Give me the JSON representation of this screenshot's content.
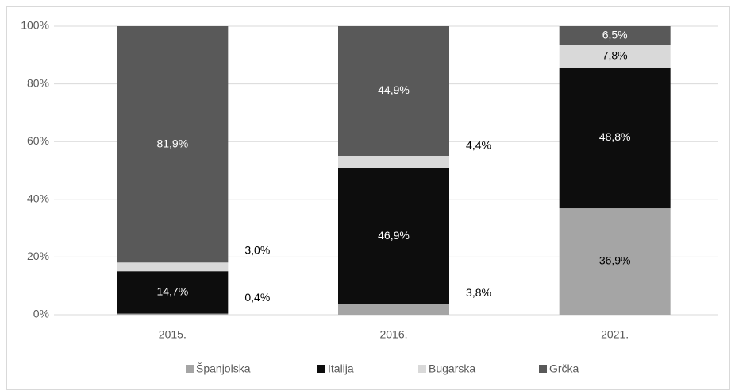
{
  "chart_data": {
    "type": "stacked_bar",
    "categories": [
      "2015.",
      "2016.",
      "2021."
    ],
    "series": [
      {
        "name": "Španjolska",
        "color": "#a5a5a5",
        "values": [
          0.4,
          3.8,
          36.9
        ],
        "value_labels": [
          "0,4%",
          "3,8%",
          "36,9%"
        ]
      },
      {
        "name": "Italija",
        "color": "#0d0d0d",
        "values": [
          14.7,
          46.9,
          48.8
        ],
        "value_labels": [
          "14,7%",
          "46,9%",
          "48,8%"
        ]
      },
      {
        "name": "Bugarska",
        "color": "#d9d9d9",
        "values": [
          3.0,
          4.4,
          7.8
        ],
        "value_labels": [
          "3,0%",
          "4,4%",
          "7,8%"
        ]
      },
      {
        "name": "Grčka",
        "color": "#595959",
        "values": [
          81.9,
          44.9,
          6.5
        ],
        "value_labels": [
          "81,9%",
          "44,9%",
          "6,5%"
        ]
      }
    ],
    "ylim": [
      0,
      100
    ],
    "yticks": [
      {
        "value": 0,
        "label": "0%"
      },
      {
        "value": 20,
        "label": "20%"
      },
      {
        "value": 40,
        "label": "40%"
      },
      {
        "value": 60,
        "label": "60%"
      },
      {
        "value": 80,
        "label": "80%"
      },
      {
        "value": 100,
        "label": "100%"
      }
    ],
    "grid": true
  }
}
